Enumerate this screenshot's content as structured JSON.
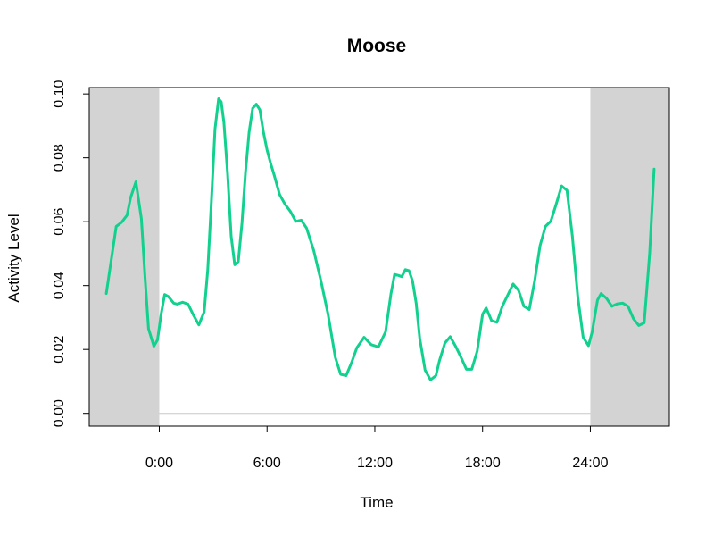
{
  "chart_data": {
    "type": "line",
    "title": "Moose",
    "xlabel": "Time",
    "ylabel": "Activity Level",
    "x_unit": "hours",
    "xlim": [
      -3.9,
      28.4
    ],
    "ylim": [
      -0.004,
      0.102
    ],
    "x_ticks": [
      {
        "value": 0,
        "label": "0:00"
      },
      {
        "value": 6,
        "label": "6:00"
      },
      {
        "value": 12,
        "label": "12:00"
      },
      {
        "value": 18,
        "label": "18:00"
      },
      {
        "value": 24,
        "label": "24:00"
      }
    ],
    "y_ticks": [
      {
        "value": 0.0,
        "label": "0.00"
      },
      {
        "value": 0.02,
        "label": "0.02"
      },
      {
        "value": 0.04,
        "label": "0.04"
      },
      {
        "value": 0.06,
        "label": "0.06"
      },
      {
        "value": 0.08,
        "label": "0.08"
      },
      {
        "value": 0.1,
        "label": "0.10"
      }
    ],
    "shaded_regions": [
      {
        "x0": -3.9,
        "x1": 0,
        "color": "#d3d3d3"
      },
      {
        "x0": 24,
        "x1": 28.4,
        "color": "#d3d3d3"
      }
    ],
    "baseline": {
      "y": 0.0,
      "color": "#c8c8c8"
    },
    "series": [
      {
        "color": "#12d18e",
        "x": [
          -2.95,
          -2.7,
          -2.4,
          -2.1,
          -1.8,
          -1.6,
          -1.3,
          -1.0,
          -0.8,
          -0.6,
          -0.3,
          -0.1,
          0.1,
          0.3,
          0.5,
          0.8,
          1.0,
          1.3,
          1.6,
          1.9,
          2.2,
          2.5,
          2.7,
          2.9,
          3.1,
          3.3,
          3.45,
          3.6,
          3.8,
          4.0,
          4.2,
          4.4,
          4.6,
          4.8,
          5.0,
          5.2,
          5.4,
          5.6,
          5.8,
          6.0,
          6.2,
          6.4,
          6.7,
          7.0,
          7.3,
          7.6,
          7.9,
          8.2,
          8.6,
          9.0,
          9.4,
          9.8,
          10.1,
          10.4,
          10.7,
          11.0,
          11.4,
          11.8,
          12.2,
          12.6,
          12.9,
          13.1,
          13.3,
          13.5,
          13.7,
          13.9,
          14.1,
          14.3,
          14.5,
          14.8,
          15.1,
          15.4,
          15.6,
          15.9,
          16.2,
          16.5,
          16.8,
          17.1,
          17.4,
          17.7,
          18.0,
          18.2,
          18.5,
          18.8,
          19.1,
          19.4,
          19.7,
          20.0,
          20.3,
          20.6,
          20.9,
          21.2,
          21.5,
          21.8,
          22.1,
          22.4,
          22.7,
          23.0,
          23.3,
          23.6,
          23.9,
          24.1,
          24.4,
          24.6,
          24.9,
          25.2,
          25.5,
          25.8,
          26.1,
          26.4,
          26.7,
          27.0,
          27.3,
          27.55
        ],
        "y": [
          0.0375,
          0.047,
          0.0585,
          0.0598,
          0.062,
          0.0675,
          0.0725,
          0.061,
          0.043,
          0.0265,
          0.021,
          0.023,
          0.031,
          0.0372,
          0.0366,
          0.0345,
          0.0342,
          0.0348,
          0.0342,
          0.0308,
          0.0277,
          0.0318,
          0.045,
          0.066,
          0.089,
          0.0985,
          0.0975,
          0.091,
          0.075,
          0.0555,
          0.0465,
          0.0475,
          0.0595,
          0.0755,
          0.088,
          0.0955,
          0.0968,
          0.095,
          0.088,
          0.0825,
          0.0782,
          0.0745,
          0.0685,
          0.0655,
          0.0632,
          0.0601,
          0.0605,
          0.058,
          0.051,
          0.0415,
          0.031,
          0.0175,
          0.0122,
          0.0118,
          0.0158,
          0.0205,
          0.0238,
          0.0215,
          0.0208,
          0.0255,
          0.0375,
          0.0435,
          0.0432,
          0.0428,
          0.045,
          0.0447,
          0.0415,
          0.0345,
          0.0235,
          0.0135,
          0.0105,
          0.0118,
          0.0165,
          0.022,
          0.024,
          0.021,
          0.0175,
          0.0138,
          0.0138,
          0.0195,
          0.031,
          0.033,
          0.029,
          0.0285,
          0.0335,
          0.037,
          0.0405,
          0.0385,
          0.0335,
          0.0325,
          0.0415,
          0.0525,
          0.0585,
          0.0602,
          0.0655,
          0.0712,
          0.0698,
          0.0555,
          0.0365,
          0.0238,
          0.0212,
          0.0255,
          0.0355,
          0.0375,
          0.036,
          0.0335,
          0.0343,
          0.0345,
          0.0335,
          0.0296,
          0.0275,
          0.0283,
          0.05,
          0.0765
        ]
      }
    ]
  }
}
